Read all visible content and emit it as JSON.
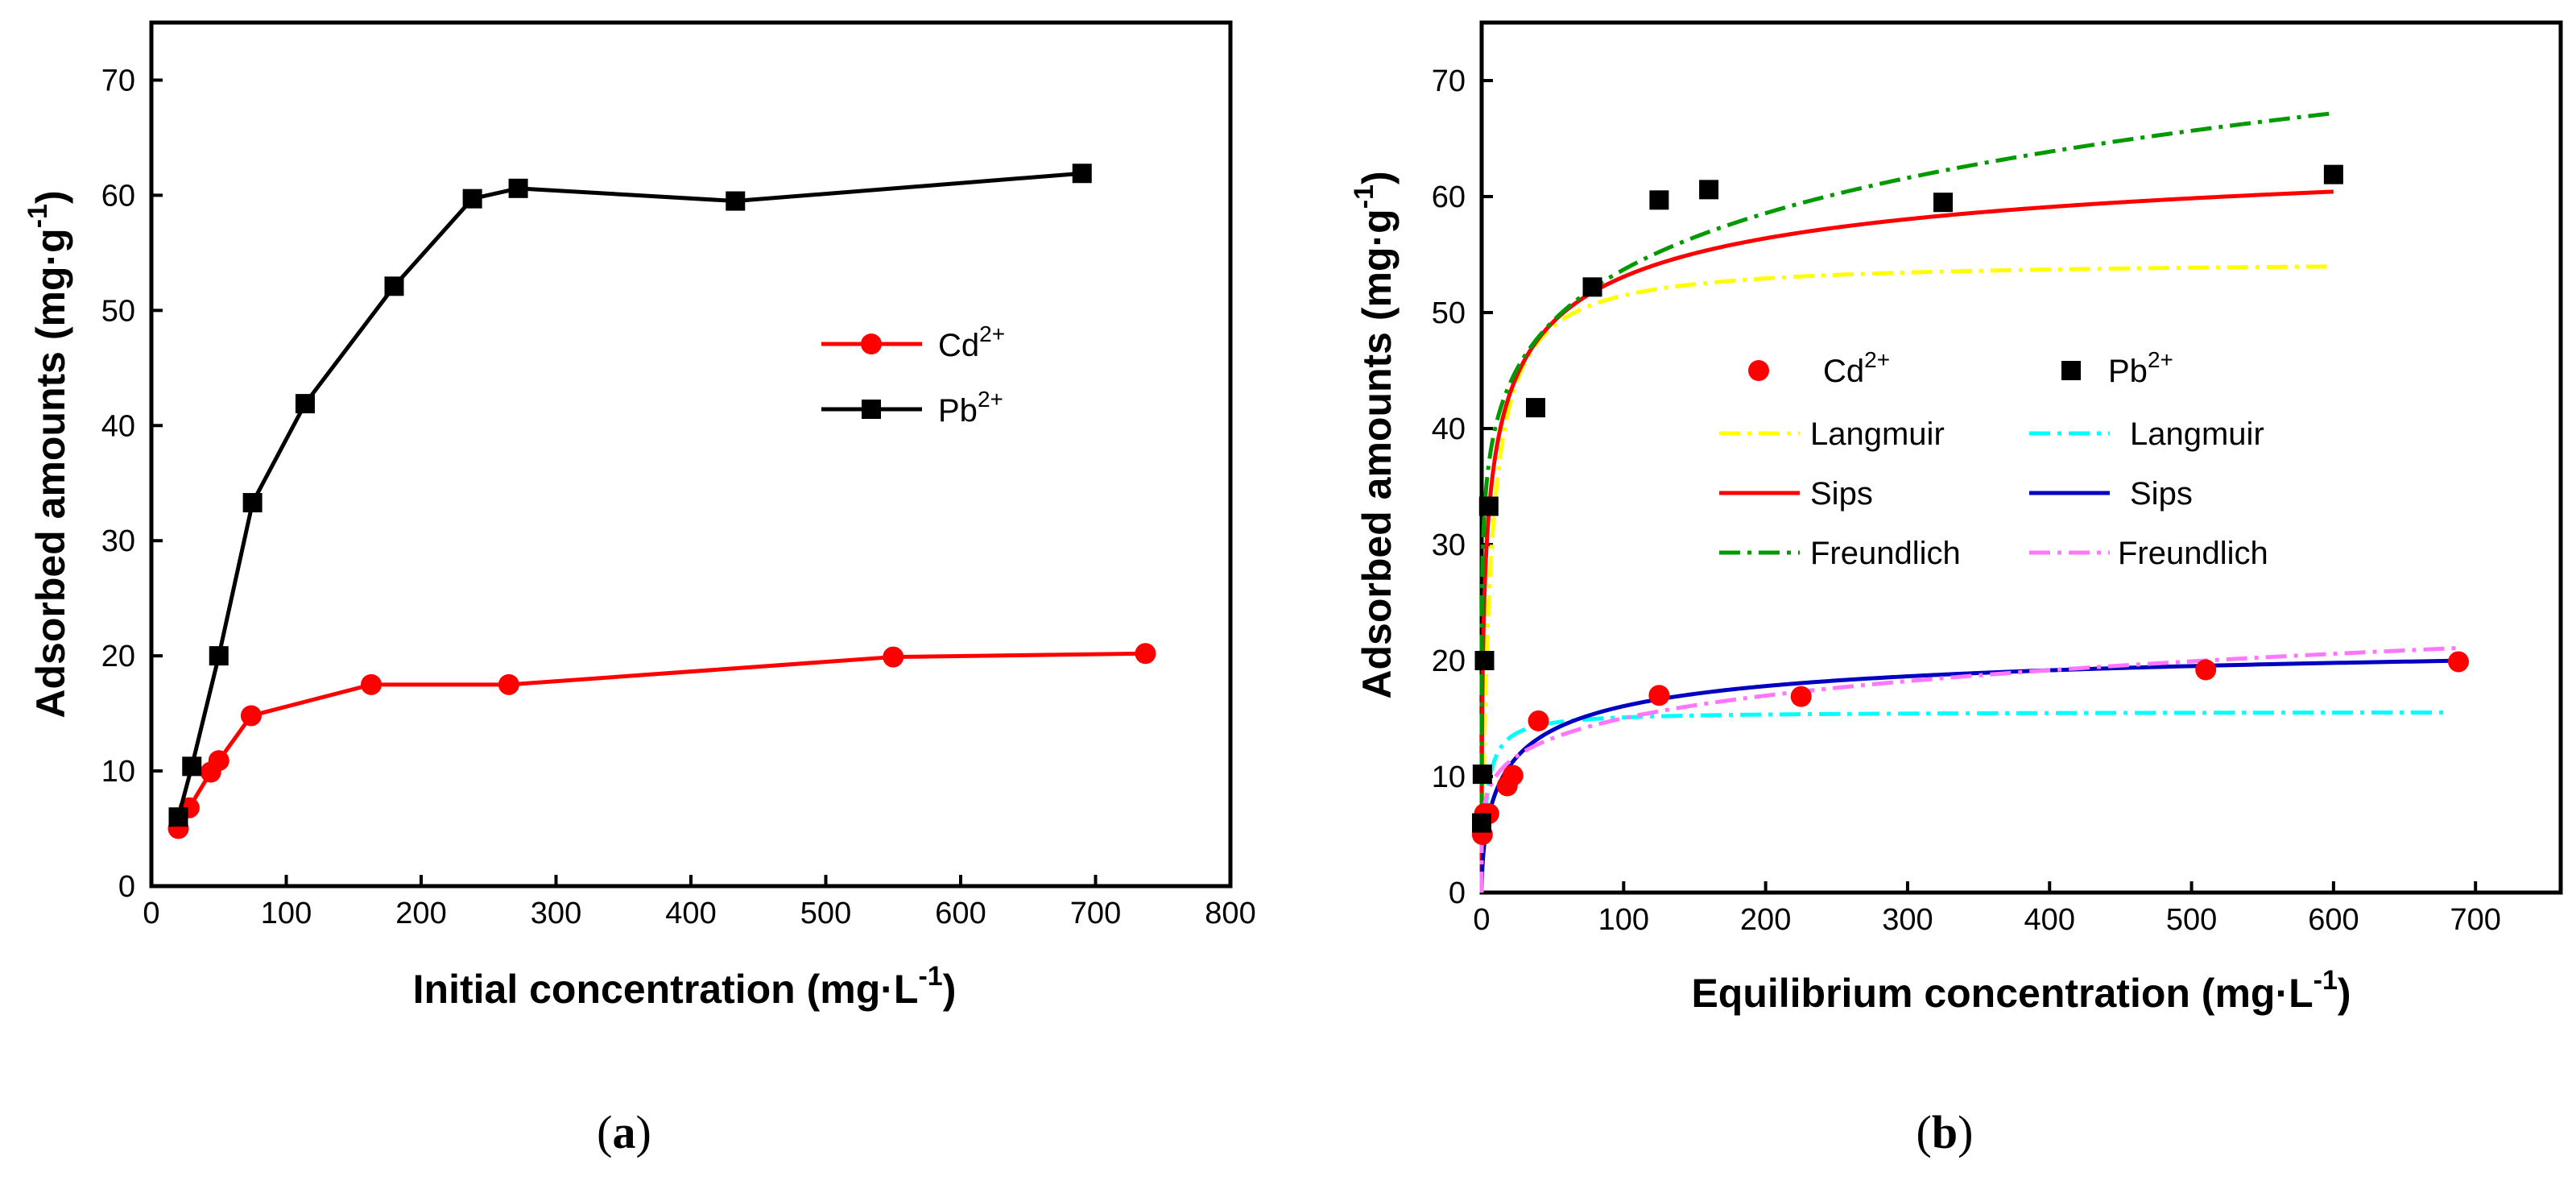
{
  "chart_data": [
    {
      "type": "line",
      "caption": "a",
      "xlabel": "Initial concentration (mg·L",
      "xlabel_sup": "-1",
      "xlabel_end": ")",
      "ylabel": "Adsorbed amounts (mg·g",
      "ylabel_sup": "-1",
      "ylabel_end": ")",
      "xlim": [
        0,
        800
      ],
      "ylim": [
        0,
        75
      ],
      "xticks": [
        0,
        100,
        200,
        300,
        400,
        500,
        600,
        700,
        800
      ],
      "yticks": [
        0,
        10,
        20,
        30,
        40,
        50,
        60,
        70
      ],
      "legend_position": "center-right",
      "series": [
        {
          "name": "Cd",
          "name_sup": "2+",
          "color": "#ff0000",
          "marker": "circle",
          "x": [
            20,
            28,
            44,
            50,
            74,
            163,
            265,
            550,
            737
          ],
          "y": [
            5,
            6.8,
            9.9,
            10.9,
            14.8,
            17.5,
            17.5,
            19.9,
            20.2
          ]
        },
        {
          "name": "Pb",
          "name_sup": "2+",
          "color": "#000000",
          "marker": "square",
          "x": [
            20,
            30,
            50,
            75,
            114,
            180,
            238,
            272,
            433,
            690
          ],
          "y": [
            6,
            10.4,
            20,
            33.3,
            41.9,
            52.1,
            59.7,
            60.6,
            59.5,
            61.9
          ]
        }
      ]
    },
    {
      "type": "scatter",
      "caption": "b",
      "xlabel": "Equilibrium concentration (mg·L",
      "xlabel_sup": "-1",
      "xlabel_end": ")",
      "ylabel": "Adsorbed amounts (mg·g",
      "ylabel_sup": "-1",
      "ylabel_end": ")",
      "xlim": [
        0,
        760
      ],
      "ylim": [
        0,
        75
      ],
      "xticks": [
        0,
        100,
        200,
        300,
        400,
        500,
        600,
        700
      ],
      "yticks": [
        0,
        10,
        20,
        30,
        40,
        50,
        60,
        70
      ],
      "legend_position": "center",
      "points": [
        {
          "name": "Cd",
          "name_sup": "2+",
          "color": "#ff0000",
          "marker": "circle",
          "x": [
            0.5,
            2,
            5,
            18,
            22,
            40,
            125,
            225,
            510,
            688
          ],
          "y": [
            5,
            6.8,
            6.8,
            9.2,
            10.1,
            14.8,
            17,
            16.9,
            19.2,
            19.9
          ]
        },
        {
          "name": "Pb",
          "name_sup": "2+",
          "color": "#000000",
          "marker": "square",
          "x": [
            0,
            0.5,
            2,
            5,
            38,
            78,
            125,
            160,
            325,
            600
          ],
          "y": [
            6,
            10.2,
            20,
            33.3,
            41.8,
            52.2,
            59.7,
            60.6,
            59.5,
            61.9
          ]
        }
      ],
      "fits": [
        {
          "name": "Langmuir",
          "color": "#ffff00",
          "dash": "dashdot",
          "model": "langmuir",
          "params": {
            "qm": 54.5,
            "K": 0.17
          },
          "xmax": 600
        },
        {
          "name": "Langmuir",
          "color": "#00ffff",
          "dash": "dashdot",
          "model": "langmuir",
          "params": {
            "qm": 15.6,
            "K": 0.3
          },
          "xmax": 680
        },
        {
          "name": "Sips",
          "color": "#ff0000",
          "dash": "solid",
          "model": "sips",
          "params": {
            "qm": 68,
            "K": 0.168,
            "n": 0.45
          },
          "xmax": 600
        },
        {
          "name": "Sips",
          "color": "#0000c0",
          "dash": "solid",
          "model": "sips",
          "params": {
            "qm": 22.5,
            "K": 0.046,
            "n": 0.6
          },
          "xmax": 688
        },
        {
          "name": "Freundlich",
          "color": "#009900",
          "dash": "dashdot",
          "model": "freundlich",
          "params": {
            "KF": 30.2,
            "n": 8.0
          },
          "xmax": 600
        },
        {
          "name": "Freundlich",
          "color": "#ff77ff",
          "dash": "dashdot",
          "model": "freundlich",
          "params": {
            "KF": 6.7,
            "n": 5.7
          },
          "xmax": 688
        }
      ]
    }
  ]
}
